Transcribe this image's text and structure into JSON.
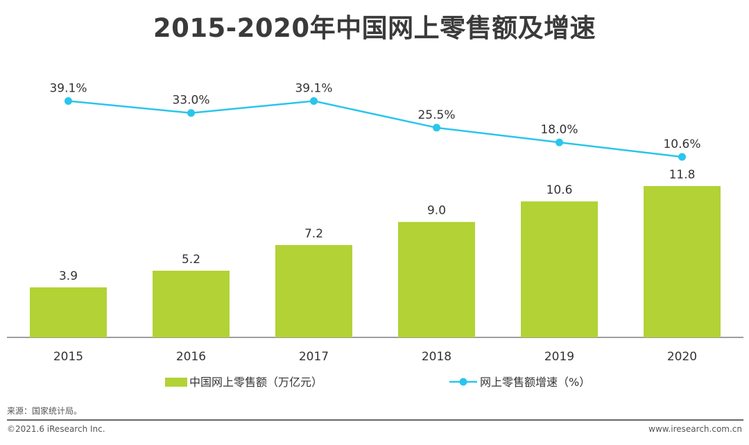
{
  "title": "2015-2020年中国网上零售额及增速",
  "chart_data": {
    "type": "bar",
    "categories": [
      "2015",
      "2016",
      "2017",
      "2018",
      "2019",
      "2020"
    ],
    "series": [
      {
        "name": "中国网上零售额（万亿元）",
        "kind": "bar",
        "color": "#b2d235",
        "values": [
          3.9,
          5.2,
          7.2,
          9.0,
          10.6,
          11.8
        ],
        "labels": [
          "3.9",
          "5.2",
          "7.2",
          "9.0",
          "10.6",
          "11.8"
        ]
      },
      {
        "name": "网上零售额增速（%）",
        "kind": "line",
        "color": "#29c5ec",
        "values": [
          39.1,
          33.0,
          39.1,
          25.5,
          18.0,
          10.6
        ],
        "labels": [
          "39.1%",
          "33.0%",
          "39.1%",
          "25.5%",
          "18.0%",
          "10.6%"
        ]
      }
    ],
    "legend_position": "bottom",
    "grid": false
  },
  "source": "来源：国家统计局。",
  "copyright": "©2021.6 iResearch Inc.",
  "website": "www.iresearch.com.cn"
}
